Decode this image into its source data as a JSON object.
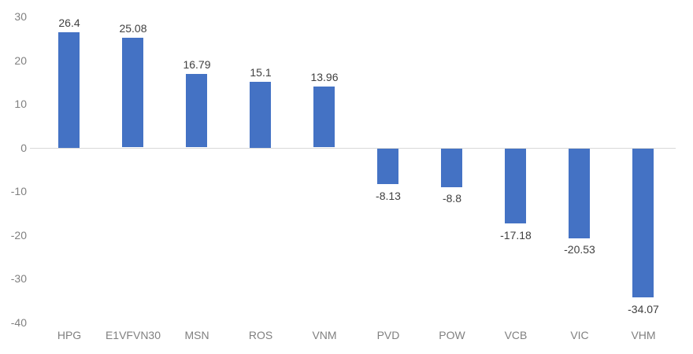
{
  "chart_data": {
    "type": "bar",
    "title": "",
    "xlabel": "",
    "ylabel": "",
    "categories": [
      "HPG",
      "E1VFVN30",
      "MSN",
      "ROS",
      "VNM",
      "PVD",
      "POW",
      "VCB",
      "VIC",
      "VHM"
    ],
    "values": [
      26.4,
      25.08,
      16.79,
      15.1,
      13.96,
      -8.13,
      -8.8,
      -17.18,
      -20.53,
      -34.07
    ],
    "data_labels": [
      "26.4",
      "25.08",
      "16.79",
      "15.1",
      "13.96",
      "-8.13",
      "-8.8",
      "-17.18",
      "-20.53",
      "-34.07"
    ],
    "ylim": [
      -40,
      30
    ],
    "yticks": [
      30,
      20,
      10,
      0,
      -10,
      -20,
      -30,
      -40
    ],
    "ytick_labels": [
      "30",
      "20",
      "10",
      "0",
      "-10",
      "-20",
      "-30",
      "-40"
    ],
    "grid": false,
    "legend_position": "none",
    "colors": {
      "bar": "#4472c4",
      "axis_line": "#d9d9d9",
      "data_label": "#404040",
      "tick_label": "#808080"
    }
  }
}
